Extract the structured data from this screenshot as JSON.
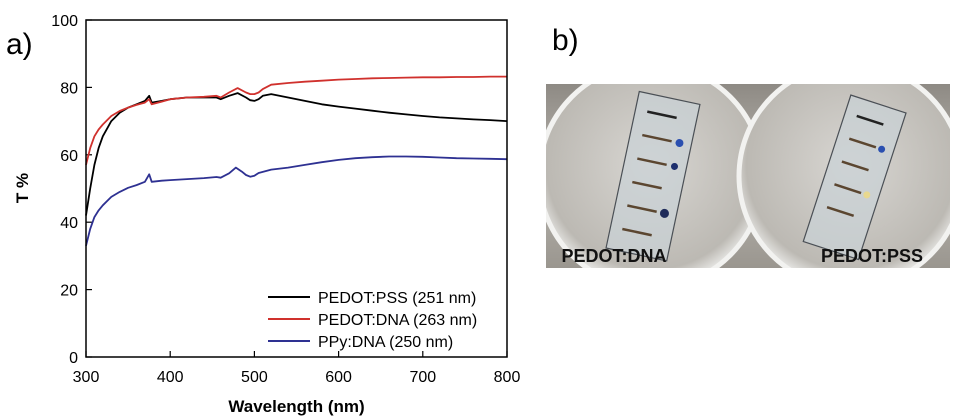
{
  "figure": {
    "panel_a_label": "a)",
    "panel_b_label": "b)"
  },
  "photo": {
    "left_caption": "PEDOT:DNA",
    "right_caption": "PEDOT:PSS"
  },
  "chart_data": {
    "type": "line",
    "title": "",
    "xlabel": "Wavelength (nm)",
    "ylabel": "T %",
    "xlim": [
      300,
      800
    ],
    "ylim": [
      0,
      100
    ],
    "xticks": [
      300,
      400,
      500,
      600,
      700,
      800
    ],
    "yticks": [
      0,
      20,
      40,
      60,
      80,
      100
    ],
    "grid": false,
    "legend_position": "bottom-right",
    "series": [
      {
        "name": "PEDOT:PSS (251 nm)",
        "color": "#000000",
        "points": [
          [
            300,
            42
          ],
          [
            305,
            50
          ],
          [
            310,
            57
          ],
          [
            315,
            62
          ],
          [
            320,
            65.5
          ],
          [
            330,
            70
          ],
          [
            340,
            72.5
          ],
          [
            350,
            74
          ],
          [
            360,
            75
          ],
          [
            370,
            76
          ],
          [
            375,
            77.5
          ],
          [
            378,
            75.5
          ],
          [
            390,
            76
          ],
          [
            400,
            76.5
          ],
          [
            420,
            77
          ],
          [
            440,
            77
          ],
          [
            455,
            77
          ],
          [
            460,
            76.5
          ],
          [
            470,
            77.5
          ],
          [
            480,
            78.3
          ],
          [
            490,
            77
          ],
          [
            495,
            76.2
          ],
          [
            500,
            76
          ],
          [
            505,
            76.5
          ],
          [
            510,
            77.5
          ],
          [
            520,
            78
          ],
          [
            540,
            77
          ],
          [
            560,
            76
          ],
          [
            580,
            75
          ],
          [
            600,
            74.3
          ],
          [
            620,
            73.7
          ],
          [
            640,
            73.1
          ],
          [
            660,
            72.5
          ],
          [
            680,
            72
          ],
          [
            700,
            71.5
          ],
          [
            720,
            71.1
          ],
          [
            740,
            70.8
          ],
          [
            760,
            70.5
          ],
          [
            780,
            70.3
          ],
          [
            800,
            70
          ]
        ]
      },
      {
        "name": "PEDOT:DNA (263 nm)",
        "color": "#d0312d",
        "points": [
          [
            300,
            57
          ],
          [
            305,
            62
          ],
          [
            310,
            65.5
          ],
          [
            315,
            67.5
          ],
          [
            320,
            69
          ],
          [
            330,
            71.5
          ],
          [
            340,
            73
          ],
          [
            350,
            74
          ],
          [
            360,
            74.8
          ],
          [
            370,
            75.5
          ],
          [
            375,
            76.5
          ],
          [
            378,
            75
          ],
          [
            390,
            75.8
          ],
          [
            400,
            76.5
          ],
          [
            420,
            77
          ],
          [
            440,
            77.2
          ],
          [
            455,
            77.5
          ],
          [
            460,
            77
          ],
          [
            470,
            78.5
          ],
          [
            480,
            79.8
          ],
          [
            490,
            78.5
          ],
          [
            495,
            78
          ],
          [
            500,
            78
          ],
          [
            505,
            78.5
          ],
          [
            510,
            79.5
          ],
          [
            520,
            80.8
          ],
          [
            540,
            81.3
          ],
          [
            560,
            81.7
          ],
          [
            580,
            82
          ],
          [
            600,
            82.3
          ],
          [
            620,
            82.5
          ],
          [
            640,
            82.7
          ],
          [
            660,
            82.8
          ],
          [
            680,
            82.9
          ],
          [
            700,
            83
          ],
          [
            720,
            83
          ],
          [
            740,
            83.1
          ],
          [
            760,
            83.1
          ],
          [
            780,
            83.2
          ],
          [
            800,
            83.2
          ]
        ]
      },
      {
        "name": "PPy:DNA (250 nm)",
        "color": "#2e3192",
        "points": [
          [
            300,
            33
          ],
          [
            305,
            38
          ],
          [
            310,
            41.5
          ],
          [
            315,
            43.5
          ],
          [
            320,
            45
          ],
          [
            330,
            47.5
          ],
          [
            340,
            49
          ],
          [
            350,
            50.2
          ],
          [
            360,
            51
          ],
          [
            370,
            52
          ],
          [
            375,
            54.2
          ],
          [
            378,
            52
          ],
          [
            390,
            52.3
          ],
          [
            400,
            52.5
          ],
          [
            420,
            52.8
          ],
          [
            440,
            53.1
          ],
          [
            455,
            53.4
          ],
          [
            460,
            53.2
          ],
          [
            470,
            54.5
          ],
          [
            478,
            56.2
          ],
          [
            485,
            55
          ],
          [
            490,
            54
          ],
          [
            495,
            53.5
          ],
          [
            500,
            53.8
          ],
          [
            505,
            54.6
          ],
          [
            520,
            55.6
          ],
          [
            540,
            56.2
          ],
          [
            560,
            57
          ],
          [
            580,
            57.8
          ],
          [
            600,
            58.5
          ],
          [
            620,
            59
          ],
          [
            640,
            59.3
          ],
          [
            660,
            59.5
          ],
          [
            680,
            59.5
          ],
          [
            700,
            59.4
          ],
          [
            720,
            59.2
          ],
          [
            740,
            59
          ],
          [
            760,
            58.9
          ],
          [
            780,
            58.8
          ],
          [
            800,
            58.7
          ]
        ]
      }
    ]
  }
}
